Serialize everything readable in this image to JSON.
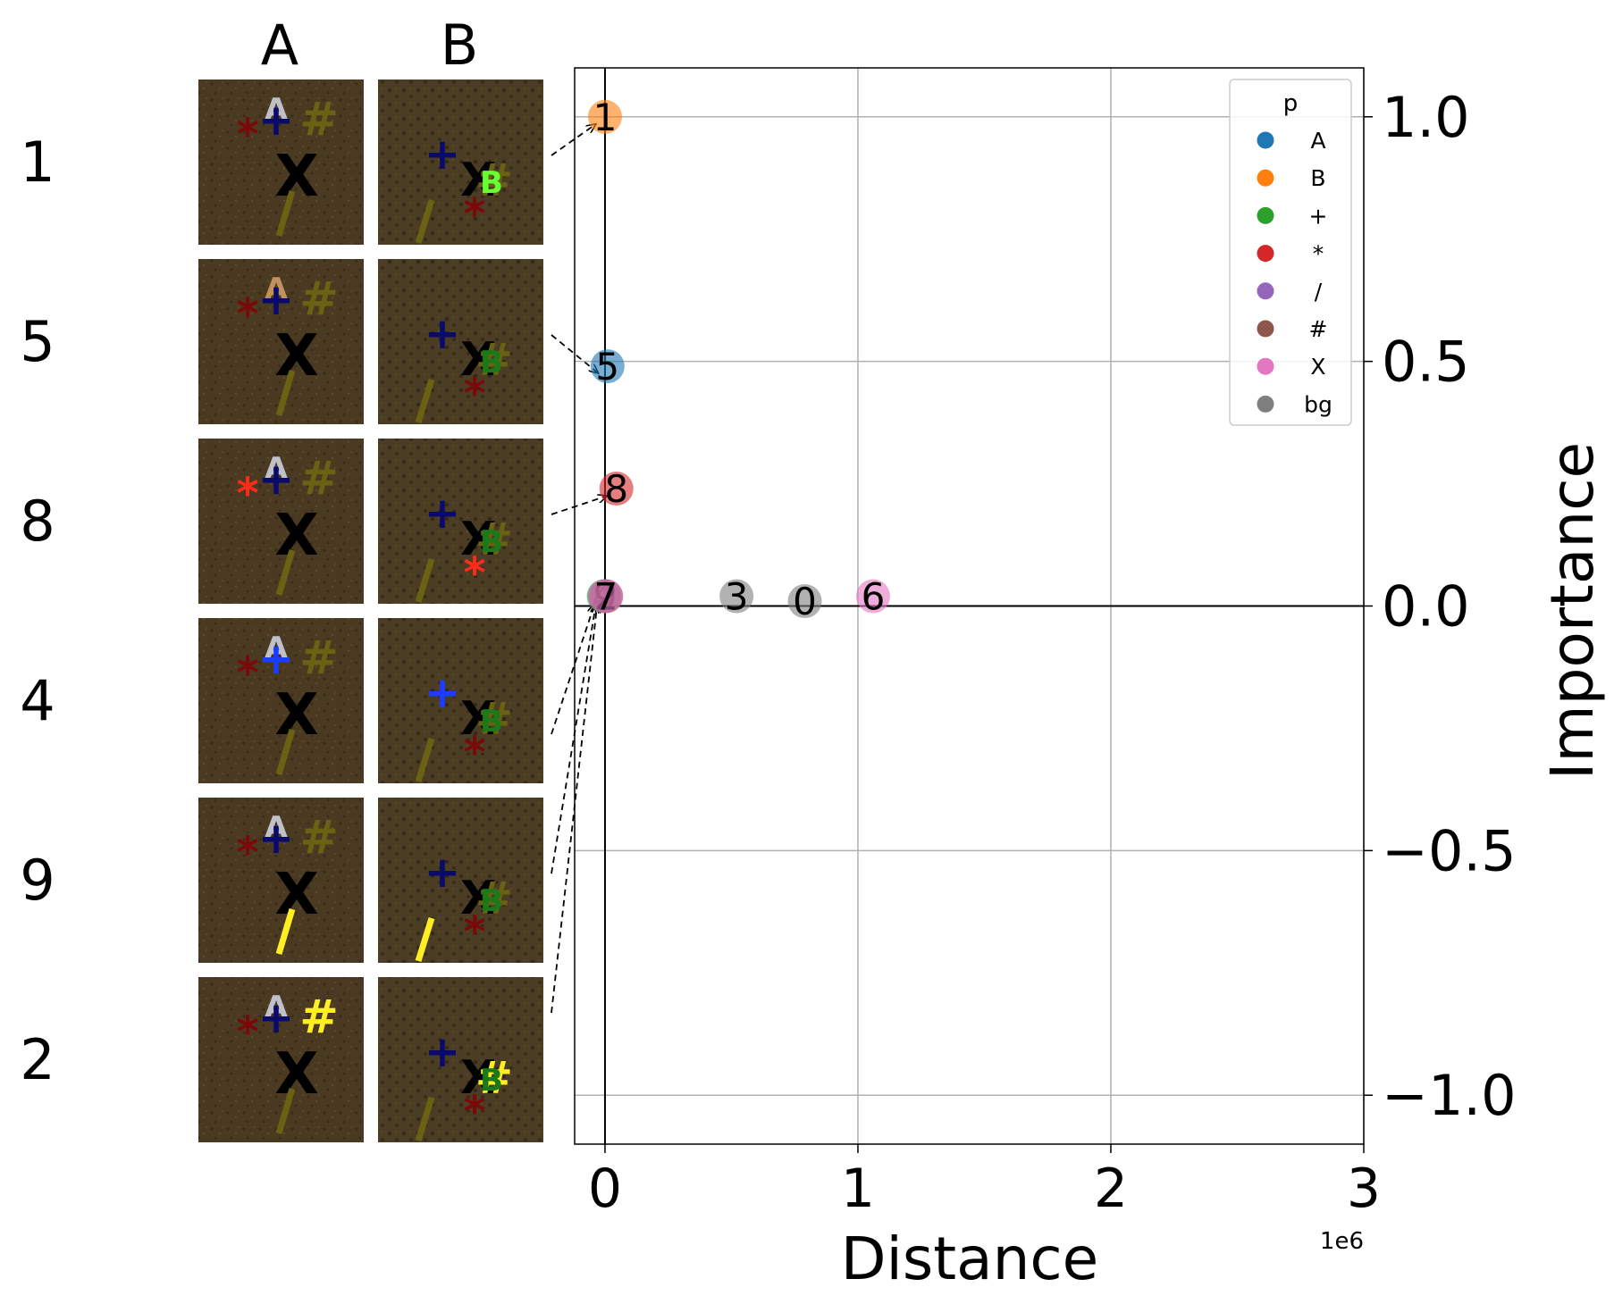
{
  "column_labels": [
    "A",
    "B"
  ],
  "rows": [
    {
      "label": "1",
      "highlight_a": "none",
      "highlight_b": "B"
    },
    {
      "label": "5",
      "highlight_a": "A",
      "highlight_b": "none"
    },
    {
      "label": "8",
      "highlight_a": "*",
      "highlight_b": "*"
    },
    {
      "label": "4",
      "highlight_a": "+",
      "highlight_b": "+"
    },
    {
      "label": "9",
      "highlight_a": "/",
      "highlight_b": "/"
    },
    {
      "label": "2",
      "highlight_a": "#",
      "highlight_b": "#"
    }
  ],
  "colors": {
    "A": "#1f77b4",
    "B": "#ff7f0e",
    "+": "#2ca02c",
    "*": "#d62728",
    "/": "#9467bd",
    "#": "#8c564b",
    "X": "#e377c2",
    "bg": "#7f7f7f"
  },
  "chart_data": {
    "type": "scatter",
    "xlabel": "Distance",
    "ylabel": "Importance",
    "x_offset_label": "1e6",
    "xlim": [
      -120000,
      3000000
    ],
    "ylim": [
      -1.1,
      1.1
    ],
    "xticks": [
      0,
      1000000,
      2000000,
      3000000
    ],
    "xtick_labels": [
      "0",
      "1",
      "2",
      "3"
    ],
    "yticks": [
      -1.0,
      -0.5,
      0.0,
      0.5,
      1.0
    ],
    "ytick_labels": [
      "−1.0",
      "−0.5",
      "0.0",
      "0.5",
      "1.0"
    ],
    "grid": true,
    "legend": {
      "title": "p",
      "placement": "top-right",
      "entries": [
        "A",
        "B",
        "+",
        "*",
        "/",
        "#",
        "X",
        "bg"
      ]
    },
    "points": [
      {
        "label": "1",
        "class": "B",
        "x": 0,
        "y": 1.0
      },
      {
        "label": "5",
        "class": "A",
        "x": 10000,
        "y": 0.49
      },
      {
        "label": "8",
        "class": "*",
        "x": 45000,
        "y": 0.24
      },
      {
        "label": "4",
        "class": "+",
        "x": -5000,
        "y": 0.02
      },
      {
        "label": "9",
        "class": "/",
        "x": 0,
        "y": 0.02
      },
      {
        "label": "2",
        "class": "#",
        "x": 5000,
        "y": 0.02
      },
      {
        "label": "7",
        "class": "X",
        "x": 3000,
        "y": 0.02
      },
      {
        "label": "3",
        "class": "bg",
        "x": 520000,
        "y": 0.02
      },
      {
        "label": "0",
        "class": "bg",
        "x": 790000,
        "y": 0.01
      },
      {
        "label": "6",
        "class": "X",
        "x": 1060000,
        "y": 0.02
      }
    ]
  }
}
